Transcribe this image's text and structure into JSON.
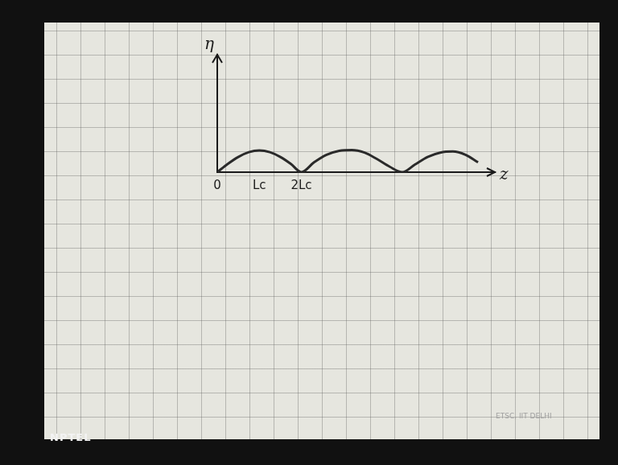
{
  "chart_data": {
    "type": "line",
    "x_label": "z",
    "y_label": "η",
    "x": [
      0,
      0.25,
      0.5,
      0.75,
      1,
      1.25,
      1.5,
      1.75,
      2,
      2.3,
      2.6,
      2.9,
      3.2,
      3.5,
      3.8,
      4.1,
      4.4,
      4.7,
      5.0,
      5.3,
      5.6,
      5.9,
      6.2
    ],
    "values": [
      0,
      0.38,
      0.7,
      0.92,
      1.0,
      0.92,
      0.7,
      0.38,
      0,
      0.45,
      0.8,
      0.98,
      1.02,
      0.9,
      0.6,
      0.25,
      0,
      0.35,
      0.7,
      0.9,
      0.95,
      0.8,
      0.45
    ],
    "color": "#2a2a2a",
    "xlim": [
      0,
      6.6
    ],
    "xticks": [
      0,
      {
        "value": 1,
        "label": "Lc"
      },
      {
        "value": 2,
        "label": "2Lc"
      }
    ],
    "ylim": [
      0,
      5.4
    ],
    "yticks": [],
    "tick_labels": "x"
  },
  "logo": "NPTEL",
  "watermark": "ETSC, IIT DELHI"
}
